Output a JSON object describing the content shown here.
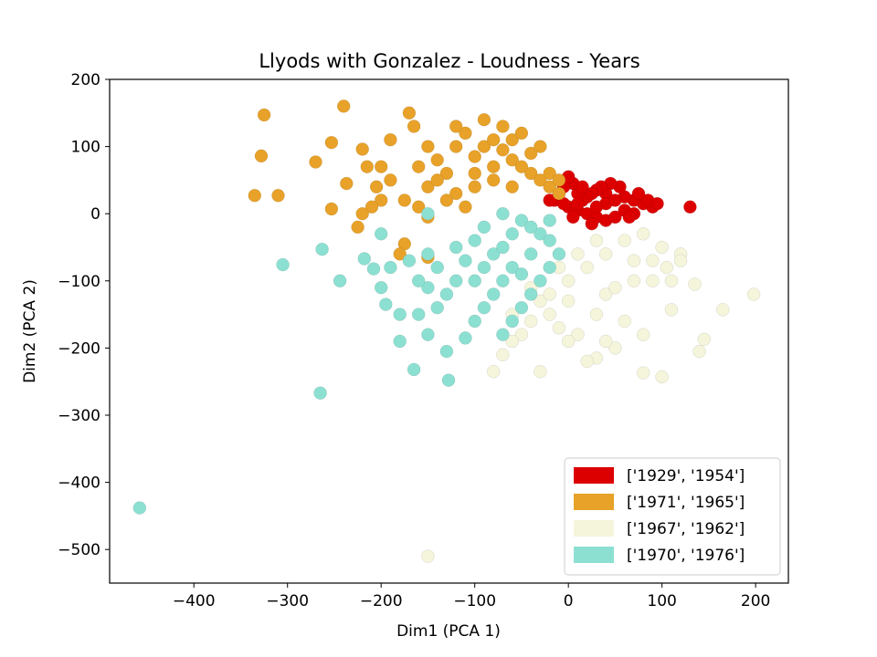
{
  "chart_data": {
    "type": "scatter",
    "title": "Llyods with Gonzalez - Loudness - Years",
    "xlabel": "Dim1 (PCA 1)",
    "ylabel": "Dim2 (PCA 2)",
    "xlim": [
      -490,
      235
    ],
    "ylim": [
      -550,
      200
    ],
    "xticks": [
      -400,
      -300,
      -200,
      -100,
      0,
      100,
      200
    ],
    "yticks": [
      200,
      100,
      0,
      -100,
      -200,
      -300,
      -400,
      -500
    ],
    "grid": false,
    "legend_position": "lower-right",
    "series": [
      {
        "name": "['1929', '1954']",
        "color": "#dc0000",
        "points": [
          [
            130,
            10
          ],
          [
            90,
            10
          ],
          [
            80,
            15
          ],
          [
            70,
            20
          ],
          [
            60,
            25
          ],
          [
            55,
            40
          ],
          [
            45,
            45
          ],
          [
            40,
            30
          ],
          [
            35,
            40
          ],
          [
            30,
            35
          ],
          [
            25,
            30
          ],
          [
            20,
            25
          ],
          [
            15,
            20
          ],
          [
            10,
            30
          ],
          [
            5,
            45
          ],
          [
            0,
            55
          ],
          [
            -5,
            40
          ],
          [
            -10,
            30
          ],
          [
            -15,
            20
          ],
          [
            -20,
            20
          ],
          [
            0,
            10
          ],
          [
            10,
            5
          ],
          [
            20,
            0
          ],
          [
            30,
            -5
          ],
          [
            40,
            -10
          ],
          [
            50,
            -5
          ],
          [
            60,
            5
          ],
          [
            70,
            0
          ],
          [
            85,
            20
          ],
          [
            95,
            15
          ],
          [
            40,
            15
          ],
          [
            15,
            40
          ],
          [
            -5,
            15
          ],
          [
            5,
            -5
          ],
          [
            25,
            -15
          ],
          [
            65,
            -5
          ],
          [
            75,
            30
          ],
          [
            50,
            20
          ],
          [
            30,
            10
          ],
          [
            10,
            15
          ]
        ]
      },
      {
        "name": "['1971', '1965']",
        "color": "#e8a229",
        "points": [
          [
            -325,
            147
          ],
          [
            -328,
            86
          ],
          [
            -335,
            27
          ],
          [
            -310,
            27
          ],
          [
            -240,
            160
          ],
          [
            -165,
            130
          ],
          [
            -253,
            7
          ],
          [
            -253,
            106
          ],
          [
            -270,
            77
          ],
          [
            -237,
            45
          ],
          [
            -220,
            96
          ],
          [
            -215,
            70
          ],
          [
            -205,
            40
          ],
          [
            -200,
            20
          ],
          [
            -210,
            10
          ],
          [
            -220,
            0
          ],
          [
            -225,
            -20
          ],
          [
            -175,
            20
          ],
          [
            -150,
            -65
          ],
          [
            -175,
            -45
          ],
          [
            -160,
            10
          ],
          [
            -150,
            40
          ],
          [
            -130,
            60
          ],
          [
            -120,
            100
          ],
          [
            -110,
            120
          ],
          [
            -100,
            85
          ],
          [
            -90,
            100
          ],
          [
            -80,
            110
          ],
          [
            -70,
            95
          ],
          [
            -60,
            80
          ],
          [
            -50,
            70
          ],
          [
            -40,
            60
          ],
          [
            -30,
            50
          ],
          [
            -20,
            40
          ],
          [
            -10,
            30
          ],
          [
            -100,
            40
          ],
          [
            -80,
            50
          ],
          [
            -120,
            30
          ],
          [
            -140,
            50
          ],
          [
            -60,
            110
          ],
          [
            -40,
            90
          ],
          [
            -80,
            70
          ],
          [
            -100,
            60
          ],
          [
            -60,
            40
          ],
          [
            -140,
            80
          ],
          [
            -200,
            70
          ],
          [
            -190,
            110
          ],
          [
            -170,
            150
          ],
          [
            -150,
            100
          ],
          [
            -180,
            -60
          ],
          [
            -150,
            -5
          ],
          [
            -110,
            10
          ],
          [
            -130,
            20
          ],
          [
            -160,
            70
          ],
          [
            -190,
            50
          ],
          [
            -120,
            130
          ],
          [
            -90,
            140
          ],
          [
            -20,
            60
          ],
          [
            -70,
            130
          ],
          [
            -50,
            120
          ],
          [
            -30,
            100
          ],
          [
            -10,
            50
          ]
        ]
      },
      {
        "name": "['1967', '1962']",
        "color": "#f5f5dc",
        "points": [
          [
            -150,
            -510
          ],
          [
            -80,
            -235
          ],
          [
            -30,
            -235
          ],
          [
            100,
            -243
          ],
          [
            80,
            -237
          ],
          [
            140,
            -205
          ],
          [
            145,
            -187
          ],
          [
            165,
            -143
          ],
          [
            110,
            -143
          ],
          [
            198,
            -120
          ],
          [
            135,
            -105
          ],
          [
            120,
            -60
          ],
          [
            105,
            -80
          ],
          [
            90,
            -100
          ],
          [
            80,
            -180
          ],
          [
            60,
            -160
          ],
          [
            50,
            -200
          ],
          [
            40,
            -190
          ],
          [
            30,
            -215
          ],
          [
            20,
            -220
          ],
          [
            10,
            -180
          ],
          [
            0,
            -190
          ],
          [
            -10,
            -170
          ],
          [
            -20,
            -150
          ],
          [
            -30,
            -130
          ],
          [
            -40,
            -110
          ],
          [
            -50,
            -180
          ],
          [
            -60,
            -190
          ],
          [
            -70,
            -210
          ],
          [
            -60,
            -150
          ],
          [
            -40,
            -160
          ],
          [
            -20,
            -120
          ],
          [
            0,
            -100
          ],
          [
            20,
            -80
          ],
          [
            40,
            -60
          ],
          [
            60,
            -40
          ],
          [
            80,
            -30
          ],
          [
            100,
            -50
          ],
          [
            120,
            -70
          ],
          [
            0,
            -130
          ],
          [
            40,
            -120
          ],
          [
            70,
            -100
          ],
          [
            90,
            -70
          ],
          [
            30,
            -150
          ],
          [
            10,
            -60
          ],
          [
            -10,
            -80
          ],
          [
            50,
            -110
          ],
          [
            30,
            -40
          ],
          [
            70,
            -70
          ],
          [
            110,
            -100
          ]
        ]
      },
      {
        "name": "['1970', '1976']",
        "color": "#8ce0d2",
        "points": [
          [
            -458,
            -438
          ],
          [
            -265,
            -267
          ],
          [
            -305,
            -76
          ],
          [
            -263,
            -53
          ],
          [
            -244,
            -100
          ],
          [
            -218,
            -67
          ],
          [
            -208,
            -82
          ],
          [
            -200,
            -110
          ],
          [
            -195,
            -135
          ],
          [
            -180,
            -190
          ],
          [
            -165,
            -232
          ],
          [
            -160,
            -150
          ],
          [
            -150,
            -180
          ],
          [
            -130,
            -205
          ],
          [
            -128,
            -248
          ],
          [
            -110,
            -185
          ],
          [
            -100,
            -160
          ],
          [
            -90,
            -140
          ],
          [
            -80,
            -120
          ],
          [
            -70,
            -180
          ],
          [
            -60,
            -160
          ],
          [
            -50,
            -140
          ],
          [
            -40,
            -120
          ],
          [
            -30,
            -100
          ],
          [
            -20,
            -80
          ],
          [
            -10,
            -60
          ],
          [
            -90,
            -20
          ],
          [
            -70,
            0
          ],
          [
            -50,
            -10
          ],
          [
            -30,
            -30
          ],
          [
            -80,
            -60
          ],
          [
            -60,
            -80
          ],
          [
            -40,
            -60
          ],
          [
            -20,
            -40
          ],
          [
            -100,
            -40
          ],
          [
            -110,
            -70
          ],
          [
            -120,
            -100
          ],
          [
            -130,
            -120
          ],
          [
            -140,
            -80
          ],
          [
            -150,
            -110
          ],
          [
            -100,
            -100
          ],
          [
            -70,
            -100
          ],
          [
            -60,
            -30
          ],
          [
            -40,
            -20
          ],
          [
            -20,
            -10
          ],
          [
            -140,
            -140
          ],
          [
            -160,
            -100
          ],
          [
            -170,
            -70
          ],
          [
            -190,
            -80
          ],
          [
            -120,
            -50
          ],
          [
            -150,
            -60
          ],
          [
            -90,
            -80
          ],
          [
            -70,
            -50
          ],
          [
            -50,
            -90
          ],
          [
            -180,
            -150
          ],
          [
            -200,
            -30
          ],
          [
            -150,
            0
          ]
        ]
      }
    ]
  }
}
